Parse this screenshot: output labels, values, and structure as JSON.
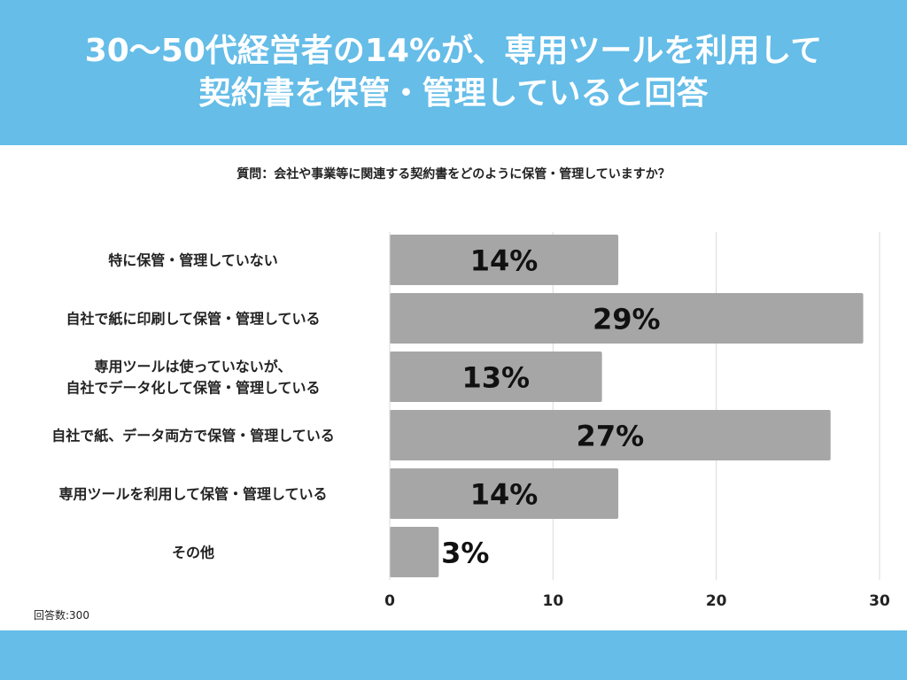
{
  "header": {
    "title_line1": "30～50代経営者の14%が、専用ツールを利用して",
    "title_line2": "契約書を保管・管理していると回答"
  },
  "question": "質問：会社や事業等に関連する契約書をどのように保管・管理していますか？",
  "respondents": "回答数:300",
  "colors": {
    "band": "#65bde8",
    "bar": "#a6a6a6",
    "grid": "#d9d9d9",
    "text": "#222222"
  },
  "chart_data": {
    "type": "bar",
    "orientation": "horizontal",
    "categories": [
      [
        "特に保管・管理していない"
      ],
      [
        "自社で紙に印刷して保管・管理している"
      ],
      [
        "専用ツールは使っていないが、",
        "自社でデータ化して保管・管理している"
      ],
      [
        "自社で紙、データ両方で保管・管理している"
      ],
      [
        "専用ツールを利用して保管・管理している"
      ],
      [
        "その他"
      ]
    ],
    "values": [
      14,
      29,
      13,
      27,
      14,
      3
    ],
    "value_labels": [
      "14%",
      "29%",
      "13%",
      "27%",
      "14%",
      "3%"
    ],
    "xlim": [
      0,
      30
    ],
    "xticks": [
      "0",
      "10",
      "20",
      "30"
    ],
    "grid": true
  }
}
